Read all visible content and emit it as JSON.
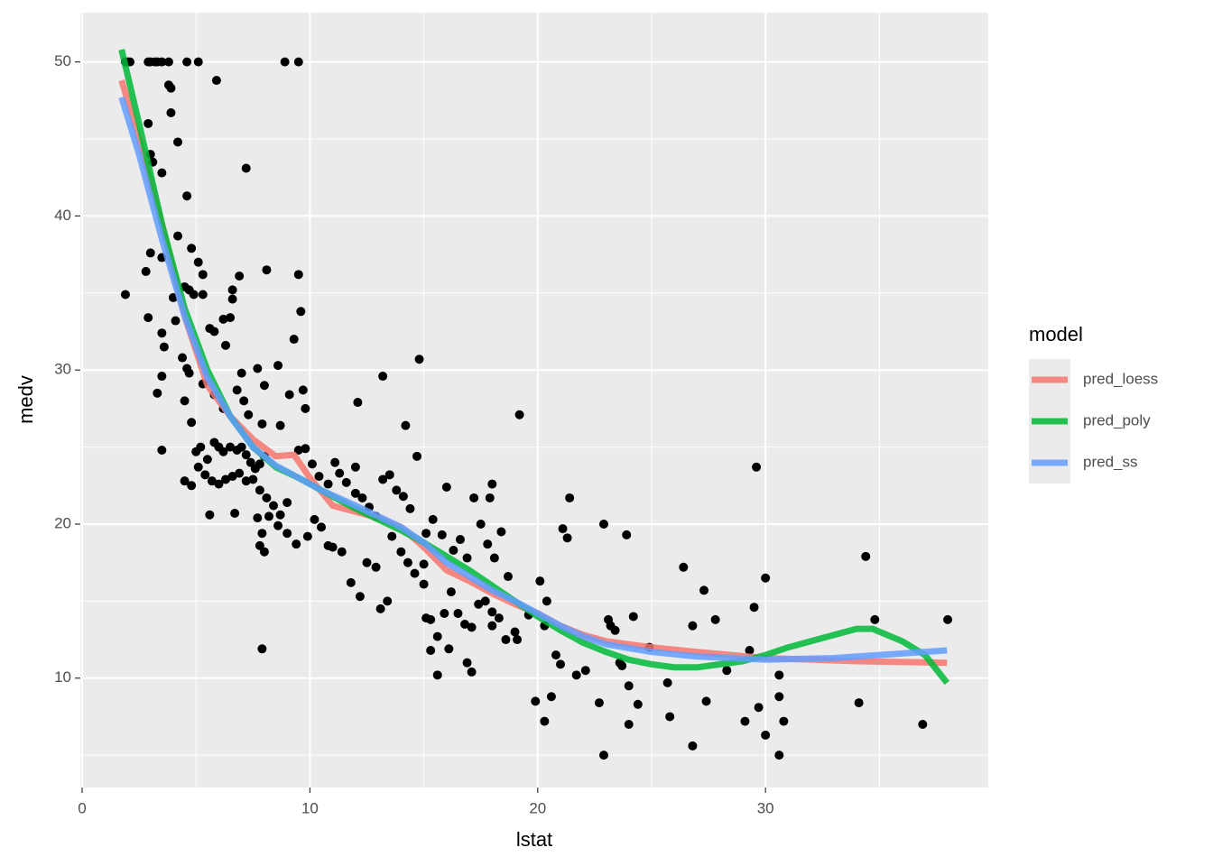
{
  "chart_data": {
    "type": "scatter",
    "x_label": "lstat",
    "y_label": "medv",
    "legend_title": "model",
    "xlim": [
      -0.08,
      39.78
    ],
    "ylim": [
      2.9,
      53.2
    ],
    "xticks": [
      0,
      10,
      20,
      30
    ],
    "yticks": [
      10,
      20,
      30,
      40,
      50
    ],
    "x_minor_gridlines": [
      5,
      15,
      25,
      35
    ],
    "y_minor_gridlines": [
      5,
      15,
      25,
      35,
      45
    ],
    "grid": true,
    "legend_position": "right",
    "points": {
      "color": "#000000",
      "x": [
        1.9,
        2.0,
        2.1,
        2.9,
        3.0,
        3.2,
        3.3,
        3.5,
        3.8,
        4.6,
        5.1,
        8.9,
        9.5,
        1.9,
        2.9,
        3.0,
        3.1,
        3.5,
        3.8,
        3.9,
        3.9,
        4.2,
        4.6,
        5.9,
        7.2,
        2.8,
        3.0,
        3.5,
        4.2,
        4.8,
        5.1,
        5.3,
        2.9,
        3.5,
        3.6,
        4.0,
        4.1,
        4.4,
        4.6,
        4.7,
        3.3,
        3.5,
        3.5,
        4.5,
        4.7,
        4.9,
        5.3,
        5.6,
        5.8,
        6.2,
        6.5,
        6.6,
        6.6,
        6.9,
        8.1,
        9.5,
        9.6,
        9.3,
        6.3,
        7.0,
        7.7,
        8.6,
        5.3,
        5.8,
        4.5,
        4.8,
        6.2,
        6.8,
        7.1,
        7.3,
        7.9,
        8.0,
        8.7,
        9.1,
        9.7,
        9.8,
        5.0,
        5.2,
        5.5,
        5.8,
        6.0,
        6.2,
        6.5,
        6.8,
        7.0,
        7.2,
        7.4,
        7.6,
        7.8,
        8.0,
        5.1,
        5.4,
        5.7,
        6.0,
        6.3,
        6.6,
        6.9,
        7.2,
        7.5,
        7.8,
        8.1,
        8.4,
        8.7,
        9.0,
        4.5,
        4.8,
        5.6,
        6.7,
        7.7,
        7.9,
        8.2,
        8.6,
        9.0,
        9.4,
        9.9,
        7.8,
        8.0,
        7.9,
        9.5,
        9.8,
        10.1,
        10.4,
        10.8,
        11.1,
        11.3,
        11.6,
        12.0,
        12.3,
        12.6,
        12.9,
        13.2,
        13.5,
        13.8,
        14.1,
        14.4,
        14.7,
        14.8,
        14.2,
        13.2,
        12.1,
        12.0,
        10.2,
        10.5,
        10.8,
        11.0,
        11.4,
        11.8,
        12.2,
        12.5,
        12.9,
        13.1,
        13.4,
        13.6,
        14.0,
        14.3,
        14.6,
        15.0,
        15.3,
        15.6,
        15.9,
        16.2,
        16.5,
        16.8,
        17.1,
        17.4,
        17.7,
        18.0,
        18.3,
        18.6,
        15.1,
        15.4,
        15.8,
        16.0,
        16.3,
        16.6,
        16.9,
        17.2,
        17.5,
        17.8,
        18.1,
        18.4,
        18.7,
        17.9,
        18.0,
        19.2,
        15.0,
        15.1,
        15.3,
        15.6,
        16.1,
        16.9,
        17.1,
        18.0,
        19.0,
        19.1,
        19.6,
        20.1,
        20.4,
        20.3,
        19.9,
        20.3,
        20.6,
        20.8,
        21.0,
        21.1,
        21.3,
        21.4,
        21.7,
        22.1,
        22.7,
        22.9,
        22.9,
        23.1,
        23.2,
        23.4,
        23.6,
        23.7,
        23.9,
        24.0,
        24.0,
        24.2,
        24.4,
        24.9,
        25.7,
        25.8,
        26.4,
        26.8,
        26.8,
        27.3,
        27.4,
        27.8,
        28.3,
        29.1,
        29.3,
        29.5,
        29.6,
        29.7,
        30.0,
        30.0,
        30.6,
        30.6,
        30.6,
        30.8,
        34.1,
        34.4,
        34.8,
        36.9,
        38.0
      ],
      "values": [
        50,
        50,
        50,
        50,
        50,
        50,
        50,
        50,
        50,
        50,
        50,
        50,
        50,
        34.9,
        46,
        44,
        43.5,
        42.8,
        48.5,
        48.3,
        46.7,
        44.8,
        41.3,
        48.8,
        43.1,
        36.4,
        37.6,
        37.3,
        38.7,
        37.9,
        37.0,
        36.2,
        33.4,
        32.4,
        31.5,
        34.7,
        33.2,
        30.8,
        30.1,
        29.8,
        28.5,
        29.6,
        24.8,
        35.4,
        35.2,
        34.9,
        34.9,
        32.7,
        32.5,
        33.3,
        33.4,
        35.2,
        34.6,
        36.1,
        36.5,
        36.2,
        33.8,
        32.0,
        31.6,
        29.8,
        30.1,
        30.3,
        29.1,
        28.4,
        28.0,
        26.6,
        27.5,
        28.7,
        28.0,
        27.1,
        26.5,
        29.0,
        26.4,
        28.4,
        28.7,
        27.5,
        24.7,
        25.0,
        24.2,
        25.3,
        25.0,
        24.7,
        25.0,
        24.8,
        25.0,
        24.5,
        24.0,
        23.6,
        23.9,
        24.4,
        23.7,
        23.2,
        22.8,
        22.6,
        22.9,
        23.1,
        23.3,
        22.8,
        22.9,
        22.2,
        21.7,
        21.2,
        20.6,
        21.4,
        22.8,
        22.5,
        20.6,
        20.7,
        20.4,
        19.4,
        20.5,
        19.9,
        19.4,
        18.7,
        19.2,
        18.6,
        18.2,
        11.9,
        24.8,
        24.9,
        23.9,
        23.1,
        22.6,
        24.0,
        23.3,
        22.7,
        22.0,
        21.7,
        21.1,
        20.5,
        22.9,
        23.2,
        22.2,
        21.8,
        21.0,
        24.4,
        30.7,
        26.4,
        29.6,
        27.9,
        23.7,
        20.3,
        19.8,
        18.6,
        18.5,
        18.2,
        16.2,
        15.3,
        17.5,
        17.2,
        14.5,
        15.0,
        19.2,
        18.2,
        17.5,
        16.8,
        16.1,
        13.8,
        12.7,
        14.2,
        15.6,
        14.2,
        13.5,
        13.3,
        14.8,
        15.0,
        14.3,
        13.9,
        12.5,
        19.4,
        20.3,
        19.3,
        22.4,
        18.3,
        19.0,
        17.8,
        21.7,
        20.0,
        18.7,
        17.8,
        19.5,
        16.6,
        21.7,
        22.6,
        27.1,
        17.4,
        13.9,
        11.8,
        10.2,
        11.9,
        11.0,
        10.4,
        13.4,
        13.0,
        12.5,
        14.1,
        16.3,
        15.0,
        13.4,
        8.5,
        7.2,
        8.8,
        11.5,
        10.9,
        19.7,
        19.1,
        21.7,
        10.2,
        10.5,
        8.4,
        20.0,
        5.0,
        13.8,
        13.4,
        13.1,
        11.0,
        10.8,
        19.3,
        9.5,
        7.0,
        14.0,
        8.3,
        12.0,
        9.7,
        7.5,
        17.2,
        13.4,
        5.6,
        15.7,
        8.5,
        13.8,
        10.5,
        7.2,
        11.8,
        14.6,
        23.7,
        8.1,
        16.5,
        6.3,
        10.2,
        8.8,
        5.0,
        7.2,
        8.4,
        17.9,
        13.8,
        7.0,
        13.8
      ]
    },
    "series": [
      {
        "name": "pred_loess",
        "color": "#F8766D",
        "x": [
          1.73,
          2.5,
          3.5,
          4.5,
          5.5,
          6.5,
          7.5,
          8.5,
          9.3,
          10,
          11,
          12,
          13,
          14,
          15,
          16,
          17,
          18,
          19,
          20,
          21,
          22,
          23,
          25,
          27,
          30,
          34,
          37.97
        ],
        "values": [
          48.8,
          45,
          39.5,
          33.5,
          29,
          27,
          25.5,
          24.4,
          24.5,
          23,
          21.2,
          20.8,
          20.4,
          19.8,
          18.5,
          17,
          16.3,
          15.5,
          14.8,
          14.2,
          13.4,
          12.8,
          12.4,
          12,
          11.7,
          11.3,
          11.1,
          11
        ]
      },
      {
        "name": "pred_poly",
        "color": "#00BA38",
        "x": [
          1.73,
          2.5,
          3.5,
          4.5,
          5.5,
          6.5,
          7.5,
          8.5,
          9.5,
          10.5,
          12,
          13,
          14,
          15,
          16,
          17,
          18,
          19,
          20,
          21,
          22,
          23,
          24,
          25,
          26,
          27,
          28,
          29,
          30,
          31,
          32,
          33,
          34,
          34.7,
          36,
          37,
          37.97
        ],
        "values": [
          50.8,
          46,
          39.5,
          34,
          30,
          27,
          25,
          23.7,
          23,
          22.2,
          21,
          20.3,
          19.6,
          18.8,
          17.9,
          17,
          16,
          15,
          14,
          13.1,
          12.3,
          11.7,
          11.2,
          10.9,
          10.7,
          10.7,
          10.9,
          11.1,
          11.5,
          12,
          12.4,
          12.8,
          13.2,
          13.2,
          12.4,
          11.5,
          9.7
        ]
      },
      {
        "name": "pred_ss",
        "color": "#619CFF",
        "x": [
          1.73,
          2.5,
          3.5,
          4.5,
          5.5,
          6.5,
          7.5,
          8.5,
          9.5,
          10.5,
          12,
          13,
          14,
          15,
          16,
          17,
          18,
          19,
          20,
          21,
          22,
          23,
          25,
          27,
          30,
          33,
          35,
          37.97
        ],
        "values": [
          47.7,
          44,
          38.5,
          33.5,
          29.5,
          27,
          25,
          23.8,
          23,
          22.2,
          21.2,
          20.5,
          19.8,
          18.8,
          17.5,
          16.6,
          15.7,
          15,
          14.2,
          13.4,
          12.7,
          12.2,
          11.7,
          11.4,
          11.2,
          11.3,
          11.5,
          11.8
        ]
      }
    ]
  }
}
